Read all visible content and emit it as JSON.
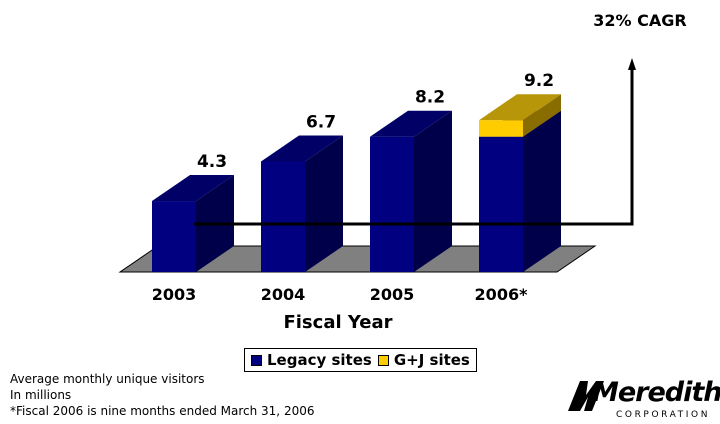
{
  "chart_data": {
    "type": "bar",
    "categories": [
      "2003",
      "2004",
      "2005",
      "2006*"
    ],
    "series": [
      {
        "name": "Legacy sites",
        "values": [
          4.3,
          6.7,
          8.2,
          8.2
        ]
      },
      {
        "name": "G+J sites",
        "values": [
          0,
          0,
          0,
          1.0
        ]
      }
    ],
    "totals": [
      "4.3",
      "6.7",
      "8.2",
      "9.2"
    ],
    "xlabel": "Fiscal Year",
    "ylim": [
      0,
      10
    ],
    "annotation": "32% CAGR",
    "legend_position": "bottom"
  },
  "colors": {
    "legacy_front": "#000080",
    "legacy_side": "#00004a",
    "legacy_top": "#000066",
    "gj_front": "#ffcc00",
    "gj_side": "#8a6d00",
    "gj_top": "#b8960a",
    "floor": "#808080"
  },
  "notes": [
    "Average monthly unique visitors",
    "In millions",
    "*Fiscal 2006 is nine months ended March 31, 2006"
  ],
  "logo": {
    "name": "Meredith",
    "sub": "CORPORATION"
  }
}
